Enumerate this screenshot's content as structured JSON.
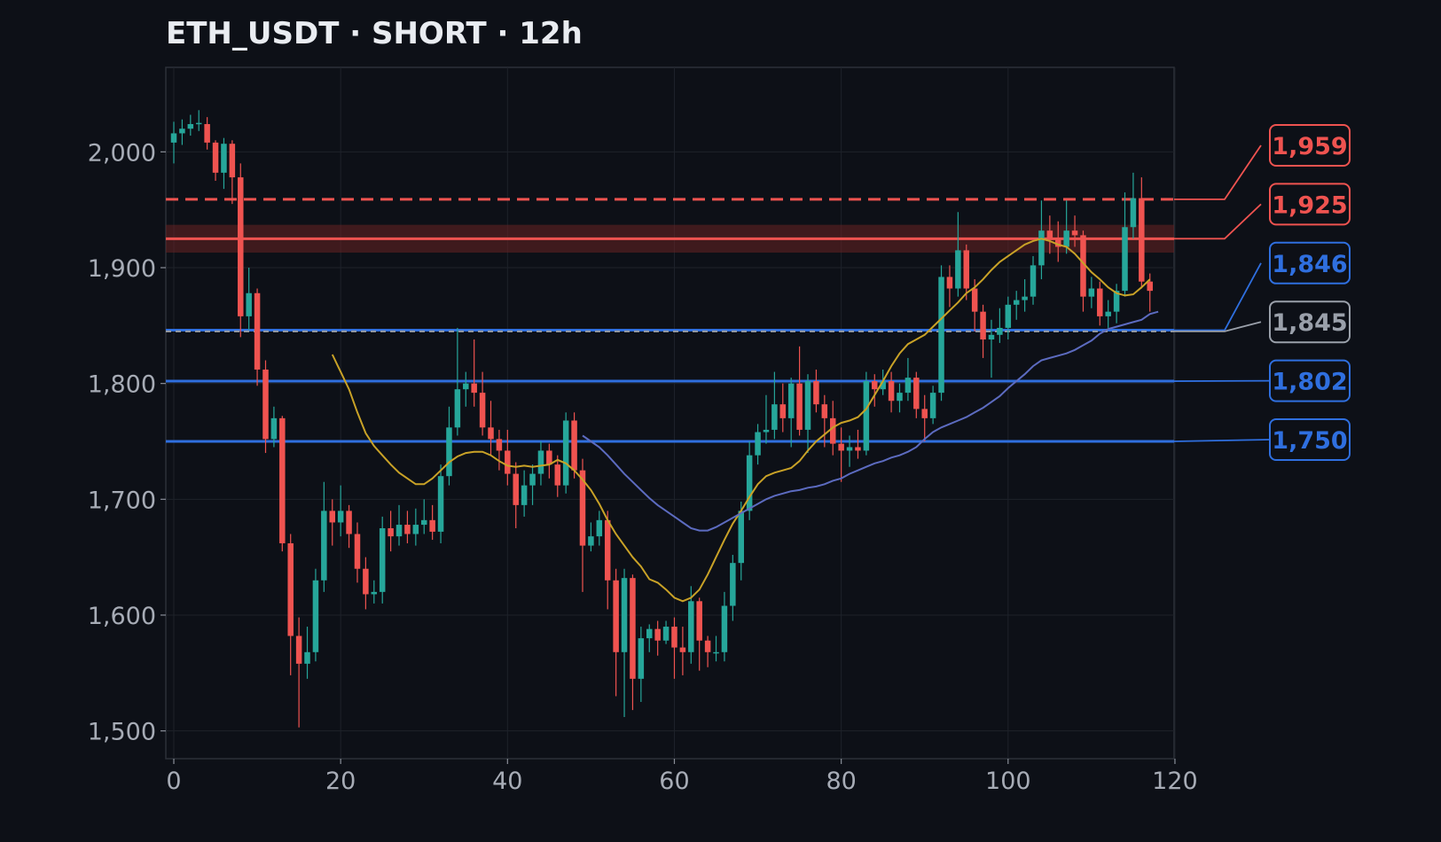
{
  "chart_data": {
    "type": "candlestick",
    "title": "ETH_USDT · SHORT · 12h",
    "xlabel": "",
    "ylabel": "",
    "xlim": [
      -1,
      120
    ],
    "ylim": [
      1477,
      2072
    ],
    "x_ticks": [
      0,
      20,
      40,
      60,
      80,
      100,
      120
    ],
    "x_tick_labels": [
      "0",
      "20",
      "40",
      "60",
      "80",
      "100",
      "120"
    ],
    "y_ticks": [
      1500,
      1600,
      1700,
      1800,
      1900,
      2000
    ],
    "y_tick_labels": [
      "1,500",
      "1,600",
      "1,700",
      "1,800",
      "1,900",
      "2,000"
    ],
    "grid": true,
    "colors": {
      "up": "#26a69a",
      "down": "#ef5350",
      "fast_ma": "#c9a227",
      "slow_ma": "#5c6bc0",
      "resistance": "#ef5350",
      "support": "#2f6fdf",
      "entry": "#9aa0aa",
      "zone_fill": "#6a2222"
    },
    "candles": [
      [
        0,
        2008,
        2016,
        2026,
        1990
      ],
      [
        1,
        2016,
        2020,
        2028,
        2006
      ],
      [
        2,
        2020,
        2024,
        2032,
        2014
      ],
      [
        3,
        2024,
        2025,
        2036,
        2018
      ],
      [
        4,
        2024,
        2008,
        2030,
        2002
      ],
      [
        5,
        2008,
        1982,
        2010,
        1975
      ],
      [
        6,
        1982,
        2007,
        2012,
        1968
      ],
      [
        7,
        2007,
        1978,
        2010,
        1955
      ],
      [
        8,
        1978,
        1858,
        1990,
        1840
      ],
      [
        9,
        1858,
        1878,
        1900,
        1846
      ],
      [
        10,
        1878,
        1812,
        1882,
        1798
      ],
      [
        11,
        1812,
        1752,
        1820,
        1740
      ],
      [
        12,
        1752,
        1770,
        1780,
        1745
      ],
      [
        13,
        1770,
        1662,
        1772,
        1655
      ],
      [
        14,
        1662,
        1582,
        1670,
        1548
      ],
      [
        15,
        1582,
        1558,
        1598,
        1503
      ],
      [
        16,
        1558,
        1568,
        1590,
        1545
      ],
      [
        17,
        1568,
        1630,
        1640,
        1560
      ],
      [
        18,
        1630,
        1690,
        1715,
        1620
      ],
      [
        19,
        1690,
        1680,
        1700,
        1660
      ],
      [
        20,
        1680,
        1690,
        1712,
        1668
      ],
      [
        21,
        1690,
        1670,
        1695,
        1658
      ],
      [
        22,
        1670,
        1640,
        1680,
        1628
      ],
      [
        23,
        1640,
        1618,
        1650,
        1605
      ],
      [
        24,
        1618,
        1620,
        1630,
        1610
      ],
      [
        25,
        1620,
        1675,
        1685,
        1610
      ],
      [
        26,
        1675,
        1668,
        1690,
        1655
      ],
      [
        27,
        1668,
        1678,
        1695,
        1660
      ],
      [
        28,
        1678,
        1670,
        1690,
        1662
      ],
      [
        29,
        1670,
        1678,
        1692,
        1660
      ],
      [
        30,
        1678,
        1682,
        1700,
        1670
      ],
      [
        31,
        1682,
        1672,
        1695,
        1665
      ],
      [
        32,
        1672,
        1720,
        1730,
        1662
      ],
      [
        33,
        1720,
        1762,
        1780,
        1712
      ],
      [
        34,
        1762,
        1795,
        1848,
        1755
      ],
      [
        35,
        1795,
        1800,
        1810,
        1780
      ],
      [
        36,
        1800,
        1792,
        1838,
        1780
      ],
      [
        37,
        1792,
        1762,
        1810,
        1755
      ],
      [
        38,
        1762,
        1752,
        1785,
        1738
      ],
      [
        39,
        1752,
        1742,
        1760,
        1725
      ],
      [
        40,
        1742,
        1722,
        1760,
        1712
      ],
      [
        41,
        1722,
        1695,
        1732,
        1675
      ],
      [
        42,
        1695,
        1712,
        1725,
        1685
      ],
      [
        43,
        1712,
        1722,
        1730,
        1695
      ],
      [
        44,
        1722,
        1742,
        1750,
        1712
      ],
      [
        45,
        1742,
        1730,
        1748,
        1718
      ],
      [
        46,
        1730,
        1712,
        1738,
        1702
      ],
      [
        47,
        1712,
        1768,
        1775,
        1705
      ],
      [
        48,
        1768,
        1725,
        1775,
        1718
      ],
      [
        49,
        1725,
        1660,
        1735,
        1620
      ],
      [
        50,
        1660,
        1668,
        1680,
        1655
      ],
      [
        51,
        1668,
        1682,
        1690,
        1660
      ],
      [
        52,
        1682,
        1630,
        1690,
        1605
      ],
      [
        53,
        1630,
        1568,
        1640,
        1530
      ],
      [
        54,
        1568,
        1632,
        1640,
        1512
      ],
      [
        55,
        1632,
        1545,
        1635,
        1518
      ],
      [
        56,
        1545,
        1580,
        1590,
        1525
      ],
      [
        57,
        1580,
        1588,
        1592,
        1568
      ],
      [
        58,
        1588,
        1578,
        1595,
        1565
      ],
      [
        59,
        1578,
        1590,
        1595,
        1575
      ],
      [
        60,
        1590,
        1572,
        1598,
        1545
      ],
      [
        61,
        1572,
        1568,
        1590,
        1548
      ],
      [
        62,
        1568,
        1612,
        1625,
        1558
      ],
      [
        63,
        1612,
        1578,
        1615,
        1552
      ],
      [
        64,
        1578,
        1568,
        1582,
        1555
      ],
      [
        65,
        1568,
        1568,
        1582,
        1560
      ],
      [
        66,
        1568,
        1608,
        1620,
        1560
      ],
      [
        67,
        1608,
        1645,
        1652,
        1595
      ],
      [
        68,
        1645,
        1690,
        1698,
        1630
      ],
      [
        69,
        1690,
        1738,
        1750,
        1682
      ],
      [
        70,
        1738,
        1758,
        1765,
        1730
      ],
      [
        71,
        1758,
        1760,
        1790,
        1748
      ],
      [
        72,
        1760,
        1782,
        1810,
        1752
      ],
      [
        73,
        1782,
        1770,
        1800,
        1758
      ],
      [
        74,
        1770,
        1800,
        1805,
        1745
      ],
      [
        75,
        1800,
        1760,
        1832,
        1755
      ],
      [
        76,
        1760,
        1802,
        1808,
        1740
      ],
      [
        77,
        1802,
        1782,
        1812,
        1775
      ],
      [
        78,
        1782,
        1770,
        1790,
        1745
      ],
      [
        79,
        1770,
        1748,
        1785,
        1738
      ],
      [
        80,
        1748,
        1742,
        1762,
        1715
      ],
      [
        81,
        1742,
        1745,
        1755,
        1728
      ],
      [
        82,
        1745,
        1742,
        1760,
        1735
      ],
      [
        83,
        1742,
        1802,
        1810,
        1738
      ],
      [
        84,
        1802,
        1795,
        1808,
        1780
      ],
      [
        85,
        1795,
        1802,
        1812,
        1790
      ],
      [
        86,
        1802,
        1785,
        1810,
        1775
      ],
      [
        87,
        1785,
        1792,
        1800,
        1775
      ],
      [
        88,
        1792,
        1805,
        1822,
        1785
      ],
      [
        89,
        1805,
        1778,
        1810,
        1770
      ],
      [
        90,
        1778,
        1770,
        1790,
        1750
      ],
      [
        91,
        1770,
        1792,
        1798,
        1765
      ],
      [
        92,
        1792,
        1892,
        1902,
        1785
      ],
      [
        93,
        1892,
        1882,
        1902,
        1866
      ],
      [
        94,
        1882,
        1915,
        1948,
        1875
      ],
      [
        95,
        1915,
        1882,
        1920,
        1872
      ],
      [
        96,
        1882,
        1862,
        1890,
        1845
      ],
      [
        97,
        1862,
        1838,
        1868,
        1822
      ],
      [
        98,
        1838,
        1842,
        1855,
        1805
      ],
      [
        99,
        1842,
        1848,
        1865,
        1835
      ],
      [
        100,
        1848,
        1868,
        1875,
        1838
      ],
      [
        101,
        1868,
        1872,
        1880,
        1855
      ],
      [
        102,
        1872,
        1875,
        1890,
        1862
      ],
      [
        103,
        1875,
        1902,
        1910,
        1868
      ],
      [
        104,
        1902,
        1932,
        1958,
        1890
      ],
      [
        105,
        1932,
        1925,
        1945,
        1912
      ],
      [
        106,
        1925,
        1918,
        1940,
        1905
      ],
      [
        107,
        1918,
        1932,
        1958,
        1912
      ],
      [
        108,
        1932,
        1928,
        1945,
        1918
      ],
      [
        109,
        1928,
        1875,
        1932,
        1862
      ],
      [
        110,
        1875,
        1882,
        1892,
        1865
      ],
      [
        111,
        1882,
        1858,
        1888,
        1850
      ],
      [
        112,
        1858,
        1862,
        1872,
        1848
      ],
      [
        113,
        1862,
        1880,
        1886,
        1852
      ],
      [
        114,
        1880,
        1935,
        1965,
        1875
      ],
      [
        115,
        1935,
        1960,
        1982,
        1925
      ],
      [
        116,
        1960,
        1888,
        1978,
        1882
      ],
      [
        117,
        1888,
        1880,
        1895,
        1862
      ]
    ],
    "series": [
      {
        "role": "fast moving average",
        "x": [
          19,
          20,
          21,
          22,
          23,
          24,
          25,
          26,
          27,
          28,
          29,
          30,
          31,
          32,
          33,
          34,
          35,
          36,
          37,
          38,
          39,
          40,
          41,
          42,
          43,
          44,
          45,
          46,
          47,
          48,
          49,
          50,
          51,
          52,
          53,
          54,
          55,
          56,
          57,
          58,
          59,
          60,
          61,
          62,
          63,
          64,
          65,
          66,
          67,
          68,
          69,
          70,
          71,
          72,
          73,
          74,
          75,
          76,
          77,
          78,
          79,
          80,
          81,
          82,
          83,
          84,
          85,
          86,
          87,
          88,
          89,
          90,
          91,
          92,
          93,
          94,
          95,
          96,
          97,
          98,
          99,
          100,
          101,
          102,
          103,
          104,
          105,
          106,
          107,
          108,
          109,
          110,
          111,
          112,
          113,
          114,
          115,
          116,
          117
        ],
        "y": [
          1825,
          1810,
          1795,
          1775,
          1757,
          1746,
          1738,
          1730,
          1723,
          1718,
          1713,
          1713,
          1718,
          1725,
          1732,
          1737,
          1740,
          1741,
          1741,
          1738,
          1733,
          1729,
          1728,
          1729,
          1728,
          1729,
          1730,
          1734,
          1731,
          1725,
          1717,
          1708,
          1696,
          1682,
          1670,
          1660,
          1650,
          1642,
          1631,
          1628,
          1622,
          1615,
          1612,
          1615,
          1622,
          1635,
          1650,
          1665,
          1679,
          1690,
          1702,
          1713,
          1720,
          1723,
          1725,
          1727,
          1733,
          1742,
          1750,
          1756,
          1762,
          1766,
          1768,
          1771,
          1778,
          1790,
          1802,
          1815,
          1826,
          1834,
          1838,
          1842,
          1849,
          1856,
          1863,
          1870,
          1878,
          1883,
          1890,
          1898,
          1905,
          1910,
          1915,
          1920,
          1923,
          1925,
          1923,
          1920,
          1918,
          1912,
          1904,
          1896,
          1890,
          1883,
          1878,
          1876,
          1877,
          1883,
          1890
        ]
      },
      {
        "role": "slow moving average",
        "x": [
          49,
          50,
          51,
          52,
          53,
          54,
          55,
          56,
          57,
          58,
          59,
          60,
          61,
          62,
          63,
          64,
          65,
          66,
          67,
          68,
          69,
          70,
          71,
          72,
          73,
          74,
          75,
          76,
          77,
          78,
          79,
          80,
          81,
          82,
          83,
          84,
          85,
          86,
          87,
          88,
          89,
          90,
          91,
          92,
          93,
          94,
          95,
          96,
          97,
          98,
          99,
          100,
          101,
          102,
          103,
          104,
          105,
          106,
          107,
          108,
          109,
          110,
          111,
          112,
          113,
          114,
          115,
          116,
          117,
          118
        ],
        "y": [
          1755,
          1750,
          1745,
          1738,
          1730,
          1722,
          1715,
          1708,
          1701,
          1695,
          1690,
          1685,
          1680,
          1675,
          1673,
          1673,
          1676,
          1680,
          1684,
          1688,
          1692,
          1696,
          1700,
          1703,
          1705,
          1707,
          1708,
          1710,
          1711,
          1713,
          1716,
          1718,
          1722,
          1725,
          1728,
          1731,
          1733,
          1736,
          1738,
          1741,
          1745,
          1752,
          1758,
          1762,
          1765,
          1768,
          1771,
          1775,
          1779,
          1784,
          1789,
          1796,
          1802,
          1808,
          1815,
          1820,
          1822,
          1824,
          1826,
          1829,
          1833,
          1837,
          1843,
          1847,
          1849,
          1851,
          1853,
          1855,
          1860,
          1862
        ]
      }
    ],
    "levels": [
      {
        "label": "1,959",
        "value": 1959,
        "kind": "resistance",
        "style": "dashed"
      },
      {
        "label": "1,925",
        "value": 1925,
        "kind": "resistance",
        "style": "solid",
        "zone": [
          1913,
          1937
        ]
      },
      {
        "label": "1,846",
        "value": 1846,
        "kind": "support",
        "style": "solid"
      },
      {
        "label": "1,845",
        "value": 1845,
        "kind": "entry",
        "style": "dashed"
      },
      {
        "label": "1,802",
        "value": 1802,
        "kind": "support",
        "style": "solid"
      },
      {
        "label": "1,750",
        "value": 1750,
        "kind": "support",
        "style": "solid"
      }
    ]
  }
}
